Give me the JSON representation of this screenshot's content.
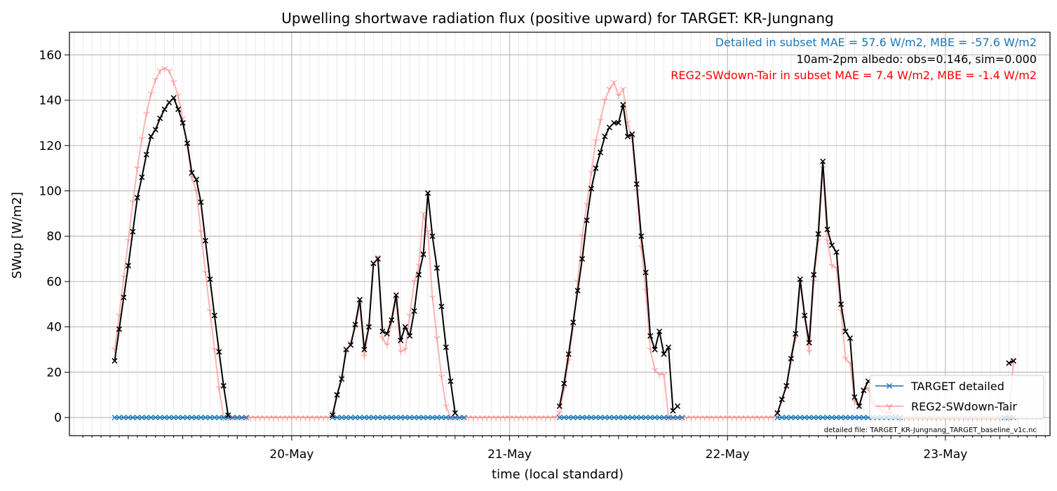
{
  "chart_data": {
    "type": "line",
    "title": "Upwelling shortwave radiation flux (positive upward) for TARGET: KR-Jungnang",
    "xlabel": "time (local standard)",
    "ylabel": "SWup [W/m2]",
    "x_units": "days since 2020-05-19 00:00 (local standard)",
    "xlim": [
      -0.02,
      4.48
    ],
    "ylim": [
      -8,
      170
    ],
    "yticks": [
      0,
      20,
      40,
      60,
      80,
      100,
      120,
      140,
      160
    ],
    "xticks": [
      {
        "x": 1,
        "label": "20-May"
      },
      {
        "x": 2,
        "label": "21-May"
      },
      {
        "x": 3,
        "label": "22-May"
      },
      {
        "x": 4,
        "label": "23-May"
      }
    ],
    "grid": true,
    "legend_position": "lower-right",
    "legend": [
      "TARGET detailed",
      "REG2-SWdown-Tair"
    ],
    "annotations": [
      {
        "text": "Detailed in subset MAE = 57.6 W/m2, MBE = -57.6 W/m2",
        "color": "#1f77b4"
      },
      {
        "text": "10am-2pm albedo: obs=0.146, sim=0.000",
        "color": "#000000"
      },
      {
        "text": "REG2-SWdown-Tair in subset MAE = 7.4 W/m2, MBE = -1.4 W/m2",
        "color": "#ff0000"
      }
    ],
    "footnote": "detailed file: TARGET_KR-Jungnang_TARGET_baseline_v1c.nc",
    "colors": {
      "detailed": "#1f77b4",
      "reg2": "#ff8080",
      "obs": "#000000"
    },
    "series": [
      {
        "name": "TARGET detailed",
        "color": "#1f77b4",
        "marker": "x",
        "segments": [
          {
            "x_start": 0.1875,
            "x_end": 0.7917,
            "value": 0
          },
          {
            "x_start": 1.1875,
            "x_end": 1.7917,
            "value": 0
          },
          {
            "x_start": 2.2292,
            "x_end": 2.7917,
            "value": 0
          },
          {
            "x_start": 3.2292,
            "x_end": 3.7917,
            "value": 0
          },
          {
            "x_start": 4.2708,
            "x_end": 4.3125,
            "value": 0
          }
        ]
      },
      {
        "name": "REG2-SWdown-Tair",
        "color": "#ff8080",
        "marker": "1",
        "data": [
          [
            0.1875,
            30
          ],
          [
            0.2083,
            45
          ],
          [
            0.2292,
            62
          ],
          [
            0.25,
            78
          ],
          [
            0.2708,
            95
          ],
          [
            0.2917,
            110
          ],
          [
            0.3125,
            123
          ],
          [
            0.3333,
            134
          ],
          [
            0.3542,
            143
          ],
          [
            0.375,
            149
          ],
          [
            0.3958,
            153
          ],
          [
            0.4167,
            154
          ],
          [
            0.4375,
            153
          ],
          [
            0.4583,
            148
          ],
          [
            0.4792,
            142
          ],
          [
            0.5,
            132
          ],
          [
            0.5208,
            120
          ],
          [
            0.5417,
            106
          ],
          [
            0.5625,
            100
          ],
          [
            0.5833,
            82
          ],
          [
            0.6042,
            64
          ],
          [
            0.625,
            47
          ],
          [
            0.6458,
            30
          ],
          [
            0.6667,
            13
          ],
          [
            0.6875,
            0
          ],
          [
            0.7083,
            0
          ],
          [
            0.8,
            0
          ],
          [
            0.9,
            0
          ],
          [
            1.0,
            0
          ],
          [
            1.1,
            0
          ],
          [
            1.1875,
            0
          ],
          [
            1.1875,
            2
          ],
          [
            1.2083,
            10
          ],
          [
            1.2292,
            18
          ],
          [
            1.25,
            29
          ],
          [
            1.2708,
            33
          ],
          [
            1.2917,
            40
          ],
          [
            1.3125,
            50
          ],
          [
            1.3333,
            27
          ],
          [
            1.3542,
            40
          ],
          [
            1.375,
            67
          ],
          [
            1.3958,
            71
          ],
          [
            1.4167,
            35
          ],
          [
            1.4375,
            32
          ],
          [
            1.4583,
            42
          ],
          [
            1.4792,
            52
          ],
          [
            1.5,
            29
          ],
          [
            1.5208,
            30
          ],
          [
            1.5417,
            45
          ],
          [
            1.5625,
            60
          ],
          [
            1.5833,
            67
          ],
          [
            1.6042,
            90
          ],
          [
            1.625,
            82
          ],
          [
            1.6458,
            53
          ],
          [
            1.6667,
            35
          ],
          [
            1.6875,
            18
          ],
          [
            1.7083,
            5
          ],
          [
            1.7292,
            0
          ],
          [
            1.8,
            0
          ],
          [
            1.9,
            0
          ],
          [
            2.0,
            0
          ],
          [
            2.1,
            0
          ],
          [
            2.2083,
            0
          ],
          [
            2.2292,
            2
          ],
          [
            2.25,
            13
          ],
          [
            2.2708,
            25
          ],
          [
            2.2917,
            40
          ],
          [
            2.3125,
            60
          ],
          [
            2.3333,
            80
          ],
          [
            2.3542,
            94
          ],
          [
            2.375,
            108
          ],
          [
            2.3958,
            122
          ],
          [
            2.4167,
            131
          ],
          [
            2.4375,
            140
          ],
          [
            2.4583,
            145
          ],
          [
            2.4792,
            148
          ],
          [
            2.5,
            142
          ],
          [
            2.5208,
            145
          ],
          [
            2.5417,
            130
          ],
          [
            2.5625,
            123
          ],
          [
            2.5833,
            100
          ],
          [
            2.6042,
            75
          ],
          [
            2.625,
            56
          ],
          [
            2.6458,
            30
          ],
          [
            2.6667,
            21
          ],
          [
            2.6875,
            19
          ],
          [
            2.7083,
            19
          ],
          [
            2.7292,
            0
          ],
          [
            2.8,
            0
          ],
          [
            2.9,
            0
          ],
          [
            3.0,
            0
          ],
          [
            3.1,
            0
          ],
          [
            3.2083,
            0
          ],
          [
            3.2292,
            2
          ],
          [
            3.25,
            8
          ],
          [
            3.2708,
            14
          ],
          [
            3.2917,
            25
          ],
          [
            3.3125,
            35
          ],
          [
            3.3333,
            60
          ],
          [
            3.3542,
            44
          ],
          [
            3.375,
            29
          ],
          [
            3.3958,
            60
          ],
          [
            3.4167,
            78
          ],
          [
            3.4375,
            110
          ],
          [
            3.4583,
            78
          ],
          [
            3.4792,
            67
          ],
          [
            3.5,
            66
          ],
          [
            3.5208,
            47
          ],
          [
            3.5417,
            26
          ],
          [
            3.5625,
            24
          ],
          [
            3.5833,
            7
          ],
          [
            3.6042,
            5
          ],
          [
            3.625,
            12
          ],
          [
            3.6458,
            13
          ],
          [
            3.6667,
            7
          ],
          [
            3.6875,
            5
          ],
          [
            3.7083,
            3
          ],
          [
            3.7292,
            2
          ],
          [
            3.75,
            2
          ],
          [
            3.7708,
            1
          ],
          [
            3.7917,
            0
          ],
          [
            3.9,
            0
          ],
          [
            4.0,
            0
          ],
          [
            4.1,
            0
          ],
          [
            4.2,
            0
          ],
          [
            4.2917,
            0
          ],
          [
            4.3125,
            25
          ]
        ]
      },
      {
        "name": "obs",
        "color": "#000000",
        "marker": "x",
        "segments": [
          [
            [
              0.1875,
              25
            ],
            [
              0.2083,
              39
            ],
            [
              0.2292,
              53
            ],
            [
              0.25,
              67
            ],
            [
              0.2708,
              82
            ],
            [
              0.2917,
              97
            ],
            [
              0.3125,
              106
            ],
            [
              0.3333,
              116
            ],
            [
              0.3542,
              124
            ],
            [
              0.375,
              127
            ],
            [
              0.3958,
              132
            ],
            [
              0.4167,
              136
            ],
            [
              0.4375,
              139
            ],
            [
              0.4583,
              141
            ],
            [
              0.4792,
              136
            ],
            [
              0.5,
              130
            ],
            [
              0.5208,
              121
            ],
            [
              0.5417,
              108
            ],
            [
              0.5625,
              105
            ],
            [
              0.5833,
              95
            ],
            [
              0.6042,
              78
            ],
            [
              0.625,
              61
            ],
            [
              0.6458,
              45
            ],
            [
              0.6667,
              29
            ],
            [
              0.6875,
              14
            ],
            [
              0.7083,
              1
            ]
          ],
          [
            [
              1.1875,
              1
            ],
            [
              1.2083,
              10
            ],
            [
              1.2292,
              17
            ],
            [
              1.25,
              30
            ],
            [
              1.2708,
              32
            ],
            [
              1.2917,
              41
            ],
            [
              1.3125,
              52
            ],
            [
              1.3333,
              30
            ],
            [
              1.3542,
              40
            ],
            [
              1.375,
              68
            ],
            [
              1.3958,
              70
            ],
            [
              1.4167,
              38
            ],
            [
              1.4375,
              37
            ],
            [
              1.4583,
              43
            ],
            [
              1.4792,
              54
            ],
            [
              1.5,
              34
            ],
            [
              1.5208,
              40
            ],
            [
              1.5417,
              36
            ],
            [
              1.5625,
              47
            ],
            [
              1.5833,
              63
            ],
            [
              1.6042,
              72
            ],
            [
              1.625,
              99
            ],
            [
              1.6458,
              80
            ],
            [
              1.6667,
              66
            ],
            [
              1.6875,
              49
            ],
            [
              1.7083,
              31
            ],
            [
              1.7292,
              16
            ],
            [
              1.75,
              2
            ]
          ],
          [
            [
              2.2292,
              5
            ],
            [
              2.25,
              15
            ],
            [
              2.2708,
              28
            ],
            [
              2.2917,
              42
            ],
            [
              2.3125,
              56
            ],
            [
              2.3333,
              70
            ],
            [
              2.3542,
              87
            ],
            [
              2.375,
              101
            ],
            [
              2.3958,
              110
            ],
            [
              2.4167,
              117
            ],
            [
              2.4375,
              124
            ],
            [
              2.4583,
              128
            ],
            [
              2.4792,
              130
            ],
            [
              2.5,
              130
            ],
            [
              2.5208,
              138
            ],
            [
              2.5417,
              124
            ],
            [
              2.5625,
              125
            ],
            [
              2.5833,
              103
            ],
            [
              2.6042,
              80
            ],
            [
              2.625,
              64
            ],
            [
              2.6458,
              36
            ],
            [
              2.6667,
              30
            ],
            [
              2.6875,
              38
            ],
            [
              2.7083,
              28
            ],
            [
              2.7292,
              31
            ],
            [
              2.75,
              3
            ],
            [
              2.7708,
              5
            ]
          ],
          [
            [
              3.2292,
              2
            ],
            [
              3.25,
              8
            ],
            [
              3.2708,
              14
            ],
            [
              3.2917,
              26
            ],
            [
              3.3125,
              37
            ],
            [
              3.3333,
              61
            ],
            [
              3.3542,
              45
            ],
            [
              3.375,
              33
            ],
            [
              3.3958,
              63
            ],
            [
              3.4167,
              81
            ],
            [
              3.4375,
              113
            ],
            [
              3.4583,
              83
            ],
            [
              3.4792,
              76
            ],
            [
              3.5,
              73
            ],
            [
              3.5208,
              50
            ],
            [
              3.5417,
              38
            ],
            [
              3.5625,
              35
            ],
            [
              3.5833,
              9
            ],
            [
              3.6042,
              5
            ],
            [
              3.625,
              12
            ],
            [
              3.6458,
              16
            ]
          ],
          [
            [
              4.2917,
              24
            ],
            [
              4.3125,
              25
            ]
          ]
        ]
      }
    ]
  }
}
